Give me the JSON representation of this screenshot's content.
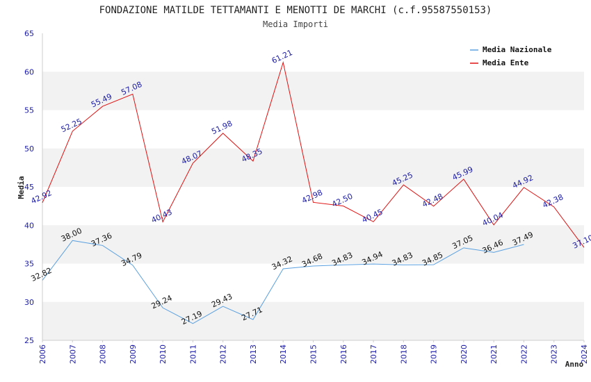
{
  "chart_data": {
    "type": "line",
    "title": "FONDAZIONE MATILDE TETTAMANTI E MENOTTI DE MARCHI (c.f.95587550153)",
    "subtitle": "Media Importi",
    "xlabel": "Anno",
    "ylabel": "Media",
    "ylim": [
      25,
      65
    ],
    "yticks": [
      "25",
      "30",
      "35",
      "40",
      "45",
      "50",
      "55",
      "60",
      "65"
    ],
    "categories": [
      "2006",
      "2007",
      "2008",
      "2009",
      "2010",
      "2011",
      "2012",
      "2013",
      "2014",
      "2015",
      "2016",
      "2017",
      "2018",
      "2019",
      "2020",
      "2021",
      "2022",
      "2023",
      "2024"
    ],
    "grid": "horizontal alternating bands",
    "legend_position": "top-right",
    "series": [
      {
        "name": "Media Nazionale",
        "color": "#5aa0e0",
        "label_color": "#111111",
        "values": [
          32.82,
          38.0,
          37.36,
          34.79,
          29.24,
          27.19,
          29.43,
          27.71,
          34.32,
          34.68,
          34.83,
          34.94,
          34.83,
          34.85,
          37.05,
          36.46,
          37.49,
          null,
          null
        ],
        "labels": [
          "32.82",
          "38.00",
          "37.36",
          "34.79",
          "29.24",
          "27.19",
          "29.43",
          "27.71",
          "34.32",
          "34.68",
          "34.83",
          "34.94",
          "34.83",
          "34.85",
          "37.05",
          "36.46",
          "37.49",
          "",
          ""
        ]
      },
      {
        "name": "Media Ente",
        "color": "#e01010",
        "label_color": "#1a1aa6",
        "values": [
          42.92,
          52.25,
          55.49,
          57.08,
          40.43,
          48.07,
          51.98,
          48.35,
          61.21,
          42.98,
          42.5,
          40.45,
          45.25,
          42.48,
          45.99,
          40.04,
          44.92,
          42.38,
          37.1
        ],
        "labels": [
          "42.92",
          "52.25",
          "55.49",
          "57.08",
          "40.43",
          "48.07",
          "51.98",
          "48.35",
          "61.21",
          "42.98",
          "42.50",
          "40.45",
          "45.25",
          "42.48",
          "45.99",
          "40.04",
          "44.92",
          "42.38",
          "37.10"
        ]
      }
    ]
  }
}
